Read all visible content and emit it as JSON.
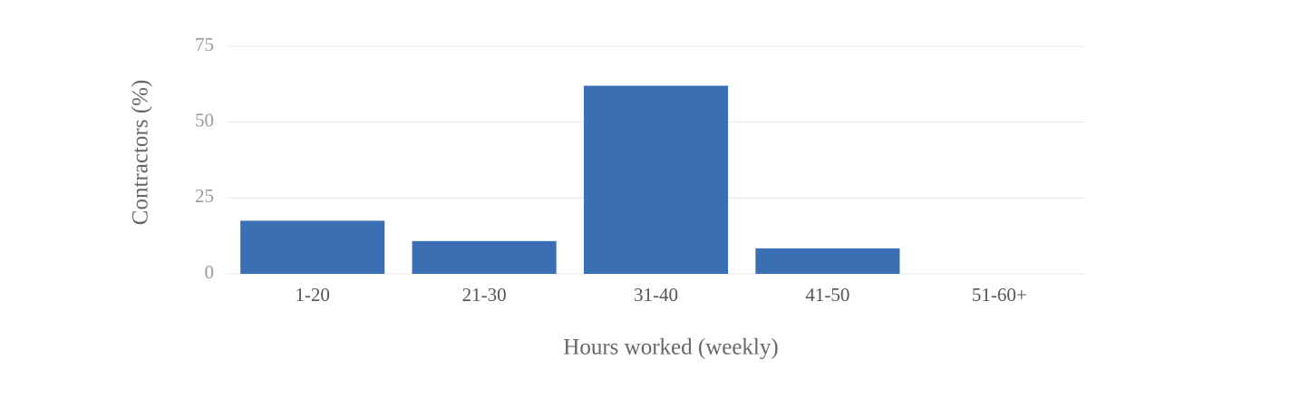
{
  "chart_data": {
    "type": "bar",
    "x_label": "Hours worked (weekly)",
    "y_label": "Contractors (%)",
    "categories": [
      "1-20",
      "21-30",
      "31-40",
      "41-50",
      "51-60+"
    ],
    "values": [
      17.5,
      10.8,
      62,
      8.4,
      0
    ],
    "color": "#3a6fb3",
    "ylim": [
      0,
      75
    ],
    "yticks": [
      0,
      25,
      50,
      75
    ],
    "grid": true
  }
}
